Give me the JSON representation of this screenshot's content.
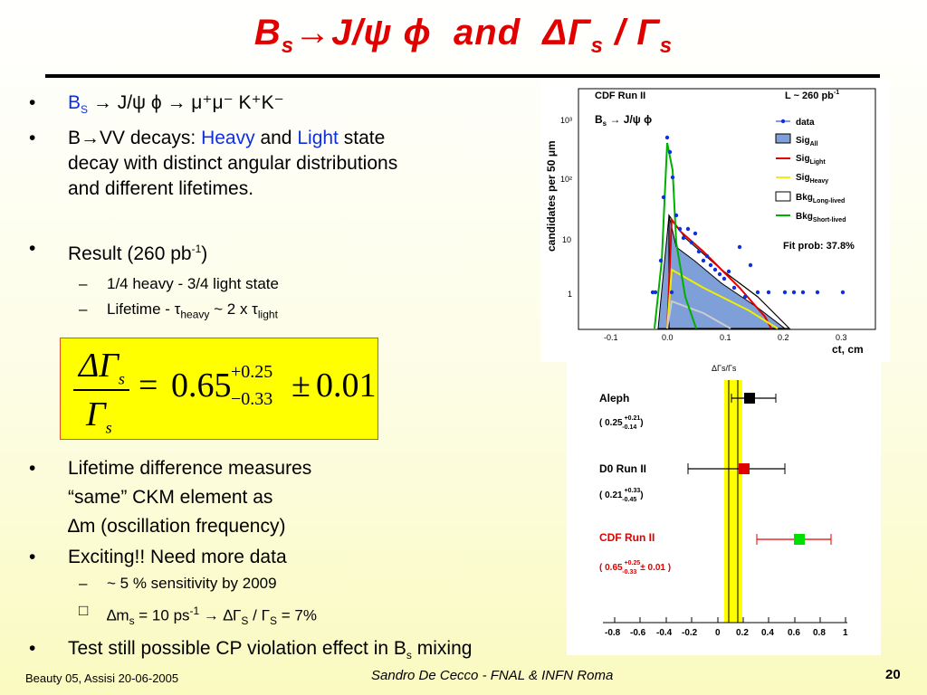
{
  "title": {
    "b": "B",
    "s": "s",
    "arrow": "→",
    "jpsi": "J/ψ ϕ",
    "and": "and",
    "dgamma": "ΔΓ",
    "slash": "/ Γ"
  },
  "bullets": {
    "b1": "B",
    "b1_sub": "S",
    "b1_rest": "→ J/ψ ϕ → μ⁺μ⁻ K⁺K⁻",
    "b2_pre": "B→VV decays:",
    "b2_heavy": "Heavy",
    "b2_and": "and",
    "b2_light": "Light",
    "b2_rest": "state",
    "b2_line2": "decay with distinct angular distributions",
    "b2_line3": "and different lifetimes.",
    "b3": "Result (260 pb",
    "b3_sup": "-1",
    "b3_end": ")",
    "b3_s1": "1/4 heavy - 3/4 light state",
    "b3_s2_pre": "Lifetime - τ",
    "b3_s2_heavy": "heavy",
    "b3_s2_mid": " ~ 2 x τ",
    "b3_s2_light": "light",
    "b4": "Lifetime difference measures",
    "b4_l2": "“same” CKM element as",
    "b4_l3": "∆m (oscillation frequency)",
    "b5": "Exciting!! Need more data",
    "b5_s1": "~ 5 % sensitivity by 2009",
    "b5_s2_pre": "∆m",
    "b5_s2_s": "s",
    "b5_s2_mid": " = 10 ps",
    "b5_s2_sup": "-1",
    "b5_s2_arrow": " → ∆Γ",
    "b5_s2_S1": "S",
    "b5_s2_slash": " / Γ",
    "b5_s2_S2": "S",
    "b5_s2_end": " = 7%",
    "b6": "Test still possible CP violation effect in B",
    "b6_sub": "s",
    "b6_end": " mixing"
  },
  "formula": {
    "num": "ΔΓ",
    "den": "Γ",
    "s": "s",
    "eq": "=",
    "value": "0.65",
    "up": "+0.25",
    "down": "−0.33",
    "pm": "±",
    "err": "0.01"
  },
  "plot1": {
    "exp": "CDF Run II",
    "lumi": "L ~ 260 pb",
    "lumi_sup": "-1",
    "label": "B",
    "label_sub": "s",
    "label_rest": " → J/ψ ϕ",
    "ylabel": "candidates per 50 μm",
    "xlabel": "ct, cm",
    "fitprob": "Fit prob: 37.8%",
    "legend": [
      {
        "main": "data",
        "sub": ""
      },
      {
        "main": "Sig",
        "sub": "All"
      },
      {
        "main": "Sig",
        "sub": "Light"
      },
      {
        "main": "Sig",
        "sub": "Heavy"
      },
      {
        "main": "Bkg",
        "sub": "Long-lived"
      },
      {
        "main": "Bkg",
        "sub": "Short-lived"
      }
    ],
    "xticks": [
      "-0.1",
      "0.0",
      "0.1",
      "0.2",
      "0.3"
    ],
    "yticks": [
      "10³",
      "10²",
      "10",
      "1"
    ]
  },
  "plot2": {
    "title": "ΔΓs/Γs",
    "entries": [
      {
        "name": "Aleph",
        "val": "( 0.25",
        "up": "+0.21",
        "dn": "-0.14",
        "end": ")",
        "color": "#000000"
      },
      {
        "name": "D0 Run II",
        "val": "( 0.21",
        "up": "+0.33",
        "dn": "-0.45",
        "end": ")",
        "color": "#000000"
      },
      {
        "name": "CDF Run II",
        "val": "( 0.65",
        "up": "+0.25",
        "dn": "-0.33",
        "end": "± 0.01 )",
        "color": "#e00000"
      }
    ],
    "xticks": [
      "-0.8",
      "-0.6",
      "-0.4",
      "-0.2",
      "0",
      "0.2",
      "0.4",
      "0.6",
      "0.8",
      "1"
    ]
  },
  "chart_data": [
    {
      "type": "scatter",
      "title": "CDF Run II",
      "xlabel": "ct, cm",
      "ylabel": "candidates per 50 μm",
      "log_y": true,
      "xlim": [
        -0.15,
        0.35
      ],
      "ylim": [
        0.4,
        1500
      ],
      "series": [
        {
          "name": "data",
          "x": [
            -0.02,
            -0.01,
            -0.005,
            0.0,
            0.005,
            0.01,
            0.015,
            0.02,
            0.025,
            0.03,
            0.035,
            0.04,
            0.045,
            0.05,
            0.055,
            0.06,
            0.065,
            0.07,
            0.075,
            0.08,
            0.085,
            0.09,
            0.095,
            0.1,
            0.105,
            0.11,
            0.115,
            0.12,
            0.13,
            0.14,
            0.15,
            0.16,
            0.17,
            0.18,
            0.2,
            0.24,
            0.3
          ],
          "y": [
            1,
            3,
            40,
            500,
            300,
            180,
            60,
            25,
            20,
            18,
            12,
            14,
            10,
            9,
            7,
            8,
            6,
            5,
            6,
            4,
            5,
            3,
            4,
            3,
            2,
            3,
            2,
            2,
            1.5,
            1.2,
            1,
            1,
            1,
            1,
            1,
            1,
            1
          ]
        }
      ]
    },
    {
      "type": "scatter",
      "title": "ΔΓs/Γs",
      "xlim": [
        -0.85,
        1.0
      ],
      "series": [
        {
          "name": "Aleph",
          "x": [
            0.25
          ],
          "err_plus": [
            0.21
          ],
          "err_minus": [
            0.14
          ]
        },
        {
          "name": "D0 Run II",
          "x": [
            0.21
          ],
          "err_plus": [
            0.33
          ],
          "err_minus": [
            0.45
          ]
        },
        {
          "name": "CDF Run II",
          "x": [
            0.65
          ],
          "err_plus": [
            0.25
          ],
          "err_minus": [
            0.33
          ]
        }
      ],
      "band": [
        0.07,
        0.17
      ]
    }
  ]
}
